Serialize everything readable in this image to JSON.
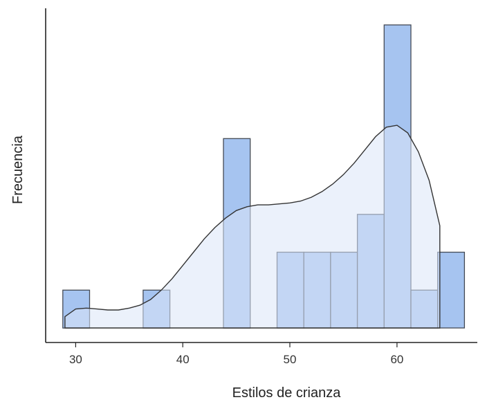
{
  "chart_data": {
    "type": "histogram",
    "title": "",
    "xlabel": "Estilos de crianza",
    "ylabel": "Frecuencia",
    "xlim": [
      27.2,
      67.5
    ],
    "x_ticks": [
      30,
      40,
      50,
      60
    ],
    "x_tick_labels": [
      "30",
      "40",
      "50",
      "60"
    ],
    "y_ticks_shown": false,
    "grid": false,
    "legend": "none",
    "bin_width": 2.5,
    "bins": [
      {
        "start": 28.8,
        "end": 31.3,
        "count": 2
      },
      {
        "start": 31.3,
        "end": 33.8,
        "count": 0
      },
      {
        "start": 33.8,
        "end": 36.3,
        "count": 0
      },
      {
        "start": 36.3,
        "end": 38.8,
        "count": 2
      },
      {
        "start": 38.8,
        "end": 41.3,
        "count": 0
      },
      {
        "start": 41.3,
        "end": 43.8,
        "count": 0
      },
      {
        "start": 43.8,
        "end": 46.3,
        "count": 10
      },
      {
        "start": 46.3,
        "end": 48.8,
        "count": 0
      },
      {
        "start": 48.8,
        "end": 51.3,
        "count": 4
      },
      {
        "start": 51.3,
        "end": 53.8,
        "count": 4
      },
      {
        "start": 53.8,
        "end": 56.3,
        "count": 4
      },
      {
        "start": 56.3,
        "end": 58.8,
        "count": 6
      },
      {
        "start": 58.8,
        "end": 61.3,
        "count": 16
      },
      {
        "start": 61.3,
        "end": 63.8,
        "count": 2
      },
      {
        "start": 63.8,
        "end": 66.3,
        "count": 4
      }
    ],
    "density": {
      "x": [
        29.0,
        30.0,
        31.0,
        32.0,
        33.0,
        34.0,
        35.0,
        36.0,
        37.0,
        38.0,
        39.0,
        40.0,
        41.0,
        42.0,
        43.0,
        44.0,
        45.0,
        46.0,
        47.0,
        48.0,
        49.0,
        50.0,
        51.0,
        52.0,
        53.0,
        54.0,
        55.0,
        56.0,
        57.0,
        58.0,
        59.0,
        60.0,
        61.0,
        62.0,
        63.0,
        64.0
      ],
      "y": [
        0.6,
        1.0,
        1.05,
        1.0,
        0.95,
        0.95,
        1.05,
        1.2,
        1.5,
        2.0,
        2.6,
        3.3,
        4.0,
        4.7,
        5.3,
        5.8,
        6.2,
        6.4,
        6.5,
        6.5,
        6.55,
        6.6,
        6.7,
        6.9,
        7.2,
        7.6,
        8.1,
        8.7,
        9.4,
        10.1,
        10.6,
        10.7,
        10.3,
        9.3,
        7.8,
        5.4
      ]
    },
    "colors": {
      "bar_fill": "#a6c4f0",
      "bar_stroke": "#444a55",
      "density_fill": "#dbe6f7",
      "density_line": "#333333",
      "axis": "#222222",
      "text": "#333333"
    }
  }
}
